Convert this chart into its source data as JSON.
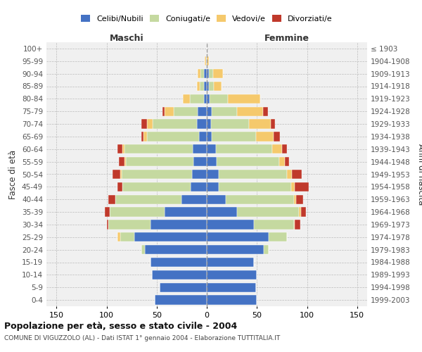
{
  "age_groups": [
    "0-4",
    "5-9",
    "10-14",
    "15-19",
    "20-24",
    "25-29",
    "30-34",
    "35-39",
    "40-44",
    "45-49",
    "50-54",
    "55-59",
    "60-64",
    "65-69",
    "70-74",
    "75-79",
    "80-84",
    "85-89",
    "90-94",
    "95-99",
    "100+"
  ],
  "birth_years": [
    "1999-2003",
    "1994-1998",
    "1989-1993",
    "1984-1988",
    "1979-1983",
    "1974-1978",
    "1969-1973",
    "1964-1968",
    "1959-1963",
    "1954-1958",
    "1949-1953",
    "1944-1948",
    "1939-1943",
    "1934-1938",
    "1929-1933",
    "1924-1928",
    "1919-1923",
    "1914-1918",
    "1909-1913",
    "1904-1908",
    "≤ 1903"
  ],
  "maschi_celibe": [
    52,
    47,
    55,
    56,
    62,
    72,
    56,
    42,
    25,
    16,
    15,
    13,
    14,
    8,
    10,
    9,
    3,
    3,
    3,
    1,
    0
  ],
  "maschi_coniugato": [
    0,
    0,
    0,
    0,
    3,
    14,
    42,
    55,
    66,
    68,
    70,
    68,
    68,
    52,
    44,
    24,
    14,
    4,
    3,
    0,
    0
  ],
  "maschi_vedovo": [
    0,
    0,
    0,
    0,
    0,
    3,
    0,
    0,
    0,
    0,
    1,
    1,
    2,
    3,
    6,
    9,
    7,
    3,
    3,
    1,
    0
  ],
  "maschi_divorziato": [
    0,
    0,
    0,
    0,
    0,
    0,
    2,
    5,
    7,
    5,
    8,
    6,
    5,
    2,
    5,
    2,
    0,
    0,
    0,
    0,
    0
  ],
  "femmine_celibe": [
    50,
    49,
    50,
    47,
    57,
    62,
    47,
    30,
    19,
    12,
    12,
    10,
    9,
    5,
    4,
    5,
    3,
    2,
    2,
    0,
    0
  ],
  "femmine_coniugato": [
    0,
    0,
    0,
    0,
    5,
    18,
    40,
    62,
    68,
    72,
    68,
    62,
    56,
    44,
    38,
    25,
    18,
    5,
    4,
    0,
    0
  ],
  "femmine_vedovo": [
    0,
    0,
    0,
    0,
    0,
    0,
    1,
    2,
    2,
    4,
    5,
    6,
    10,
    18,
    22,
    26,
    32,
    8,
    10,
    2,
    0
  ],
  "femmine_divorziato": [
    0,
    0,
    0,
    0,
    0,
    0,
    5,
    5,
    7,
    14,
    10,
    4,
    5,
    6,
    4,
    5,
    0,
    0,
    0,
    0,
    0
  ],
  "colors": {
    "celibe": "#4472c4",
    "coniugato": "#c5d9a0",
    "vedovo": "#f5c96c",
    "divorziato": "#c0392b"
  },
  "xlim": 160,
  "title": "Popolazione per età, sesso e stato civile - 2004",
  "subtitle": "COMUNE DI VIGUZZOLO (AL) - Dati ISTAT 1° gennaio 2004 - Elaborazione TUTTITALIA.IT",
  "ylabel_left": "Fasce di età",
  "ylabel_right": "Anni di nascita",
  "xlabel_left": "Maschi",
  "xlabel_right": "Femmine",
  "bg_color": "#f0f0f0",
  "grid_color": "#bbbbbb"
}
